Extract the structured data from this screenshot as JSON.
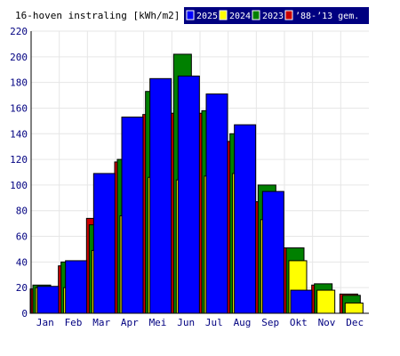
{
  "chart_data": {
    "type": "bar",
    "title": "16-hoven instraling [kWh/m2]",
    "categories": [
      "Jan",
      "Feb",
      "Mar",
      "Apr",
      "Mei",
      "Jun",
      "Jul",
      "Aug",
      "Sep",
      "Okt",
      "Nov",
      "Dec"
    ],
    "ylim": [
      0,
      220
    ],
    "yticks": [
      0,
      20,
      40,
      60,
      80,
      100,
      120,
      140,
      160,
      180,
      200,
      220
    ],
    "grid": true,
    "legend_position": "top",
    "series": [
      {
        "name": "’88-’13 gem.",
        "color": "#cc0000",
        "values": [
          19,
          37,
          74,
          118,
          155,
          156,
          156,
          134,
          87,
          51,
          22,
          15
        ]
      },
      {
        "name": "2023",
        "color": "#008000",
        "values": [
          22,
          40,
          69,
          120,
          173,
          202,
          158,
          140,
          100,
          51,
          23,
          14
        ]
      },
      {
        "name": "2024",
        "color": "#ffff00",
        "values": [
          20,
          20,
          49,
          76,
          106,
          104,
          107,
          109,
          73,
          41,
          18,
          8
        ]
      },
      {
        "name": "2025",
        "color": "#0000ff",
        "values": [
          21,
          41,
          109,
          153,
          183,
          185,
          171,
          147,
          95,
          18,
          null,
          null
        ]
      }
    ]
  }
}
